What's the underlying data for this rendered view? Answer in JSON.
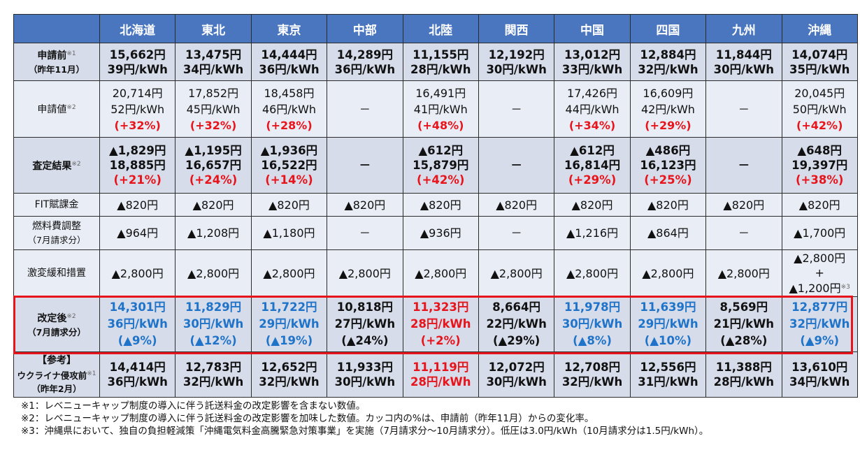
{
  "regions": [
    "北海道",
    "東北",
    "東京",
    "中部",
    "北陸",
    "関西",
    "中国",
    "四国",
    "九州",
    "沖縄"
  ],
  "rows": [
    {
      "id": "before",
      "style": "bold",
      "label": "申請前",
      "sup": "※1",
      "sub": "（昨年11月）",
      "sub_bold": true,
      "cells": [
        {
          "lines": [
            "15,662円",
            "39円/kWh"
          ]
        },
        {
          "lines": [
            "13,475円",
            "34円/kWh"
          ]
        },
        {
          "lines": [
            "14,444円",
            "36円/kWh"
          ]
        },
        {
          "lines": [
            "14,289円",
            "36円/kWh"
          ]
        },
        {
          "lines": [
            "11,155円",
            "28円/kWh"
          ]
        },
        {
          "lines": [
            "12,192円",
            "30円/kWh"
          ]
        },
        {
          "lines": [
            "13,012円",
            "33円/kWh"
          ]
        },
        {
          "lines": [
            "12,884円",
            "32円/kWh"
          ]
        },
        {
          "lines": [
            "11,844円",
            "30円/kWh"
          ]
        },
        {
          "lines": [
            "14,074円",
            "35円/kWh"
          ]
        }
      ]
    },
    {
      "id": "applied",
      "style": "light",
      "label": "申請値",
      "sup": "※2",
      "pct_line": 2,
      "cells": [
        {
          "lines": [
            "20,714円",
            "52円/kWh",
            "(+32%)"
          ]
        },
        {
          "lines": [
            "17,852円",
            "45円/kWh",
            "(+32%)"
          ]
        },
        {
          "lines": [
            "18,458円",
            "46円/kWh",
            "(+28%)"
          ]
        },
        {
          "lines": [
            "－"
          ]
        },
        {
          "lines": [
            "16,491円",
            "41円/kWh",
            "(+48%)"
          ]
        },
        {
          "lines": [
            "－"
          ]
        },
        {
          "lines": [
            "17,426円",
            "44円/kWh",
            "(+34%)"
          ]
        },
        {
          "lines": [
            "16,609円",
            "42円/kWh",
            "(+29%)"
          ]
        },
        {
          "lines": [
            "－"
          ]
        },
        {
          "lines": [
            "20,045円",
            "50円/kWh",
            "(+42%)"
          ]
        }
      ]
    },
    {
      "id": "assessed",
      "style": "mid",
      "label": "査定結果",
      "sup": "※2",
      "pct_line": 2,
      "cells": [
        {
          "lines": [
            "▲1,829円",
            "18,885円",
            "(+21%)"
          ]
        },
        {
          "lines": [
            "▲1,195円",
            "16,657円",
            "(+24%)"
          ]
        },
        {
          "lines": [
            "▲1,936円",
            "16,522円",
            "(+14%)"
          ]
        },
        {
          "lines": [
            "－"
          ]
        },
        {
          "lines": [
            "▲612円",
            "15,879円",
            "(+42%)"
          ]
        },
        {
          "lines": [
            "－"
          ]
        },
        {
          "lines": [
            "▲612円",
            "16,814円",
            "(+29%)"
          ]
        },
        {
          "lines": [
            "▲486円",
            "16,123円",
            "(+25%)"
          ]
        },
        {
          "lines": [
            "－"
          ]
        },
        {
          "lines": [
            "▲648円",
            "19,397円",
            "(+38%)"
          ]
        }
      ]
    },
    {
      "id": "fit",
      "style": "light",
      "label": "FIT賦課金",
      "cells": [
        {
          "lines": [
            "▲820円"
          ]
        },
        {
          "lines": [
            "▲820円"
          ]
        },
        {
          "lines": [
            "▲820円"
          ]
        },
        {
          "lines": [
            "▲820円"
          ]
        },
        {
          "lines": [
            "▲820円"
          ]
        },
        {
          "lines": [
            "▲820円"
          ]
        },
        {
          "lines": [
            "▲820円"
          ]
        },
        {
          "lines": [
            "▲820円"
          ]
        },
        {
          "lines": [
            "▲820円"
          ]
        },
        {
          "lines": [
            "▲820円"
          ]
        }
      ]
    },
    {
      "id": "fuel",
      "style": "light",
      "label": "燃料費調整",
      "sub": "（7月請求分）",
      "cells": [
        {
          "lines": [
            "▲964円"
          ]
        },
        {
          "lines": [
            "▲1,208円"
          ]
        },
        {
          "lines": [
            "▲1,180円"
          ]
        },
        {
          "lines": [
            "－"
          ]
        },
        {
          "lines": [
            "▲936円"
          ]
        },
        {
          "lines": [
            "－"
          ]
        },
        {
          "lines": [
            "▲1,216円"
          ]
        },
        {
          "lines": [
            "▲864円"
          ]
        },
        {
          "lines": [
            "－"
          ]
        },
        {
          "lines": [
            "▲1,700円"
          ]
        }
      ]
    },
    {
      "id": "mitigation",
      "style": "light",
      "label": "激変緩和措置",
      "cells": [
        {
          "lines": [
            "▲2,800円"
          ]
        },
        {
          "lines": [
            "▲2,800円"
          ]
        },
        {
          "lines": [
            "▲2,800円"
          ]
        },
        {
          "lines": [
            "▲2,800円"
          ]
        },
        {
          "lines": [
            "▲2,800円"
          ]
        },
        {
          "lines": [
            "▲2,800円"
          ]
        },
        {
          "lines": [
            "▲2,800円"
          ]
        },
        {
          "lines": [
            "▲2,800円"
          ]
        },
        {
          "lines": [
            "▲2,800円"
          ]
        },
        {
          "lines": [
            "▲2,800円",
            "+",
            "▲1,200円"
          ],
          "sup": "※3"
        }
      ]
    },
    {
      "id": "revised",
      "style": "bold",
      "label": "改定後",
      "sup": "※2",
      "sub": "（7月請求分）",
      "sub_bold": true,
      "cells": [
        {
          "lines": [
            "14,301円",
            "36円/kWh",
            "(▲9%)"
          ],
          "color": "blue"
        },
        {
          "lines": [
            "11,829円",
            "30円/kWh",
            "(▲12%)"
          ],
          "color": "blue"
        },
        {
          "lines": [
            "11,722円",
            "29円/kWh",
            "(▲19%)"
          ],
          "color": "blue"
        },
        {
          "lines": [
            "10,818円",
            "27円/kWh",
            "(▲24%)"
          ],
          "color": "black"
        },
        {
          "lines": [
            "11,323円",
            "28円/kWh",
            "(+2%)"
          ],
          "color": "red"
        },
        {
          "lines": [
            "8,664円",
            "22円/kWh",
            "(▲29%)"
          ],
          "color": "black"
        },
        {
          "lines": [
            "11,978円",
            "30円/kWh",
            "(▲8%)"
          ],
          "color": "blue"
        },
        {
          "lines": [
            "11,639円",
            "29円/kWh",
            "(▲10%)"
          ],
          "color": "blue"
        },
        {
          "lines": [
            "8,569円",
            "21円/kWh",
            "(▲28%)"
          ],
          "color": "black"
        },
        {
          "lines": [
            "12,877円",
            "32円/kWh",
            "(▲9%)"
          ],
          "color": "blue"
        }
      ]
    },
    {
      "id": "reference",
      "style": "bold",
      "label": "【参考】",
      "label2": "ウクライナ侵攻前",
      "sup": "※1",
      "sub": "（昨年2月）",
      "sub_bold": true,
      "cells": [
        {
          "lines": [
            "14,414円",
            "36円/kWh"
          ]
        },
        {
          "lines": [
            "12,783円",
            "32円/kWh"
          ]
        },
        {
          "lines": [
            "12,652円",
            "32円/kWh"
          ]
        },
        {
          "lines": [
            "11,933円",
            "30円/kWh"
          ]
        },
        {
          "lines": [
            "11,119円",
            "28円/kWh"
          ],
          "color": "red"
        },
        {
          "lines": [
            "12,072円",
            "30円/kWh"
          ]
        },
        {
          "lines": [
            "12,708円",
            "32円/kWh"
          ]
        },
        {
          "lines": [
            "12,556円",
            "31円/kWh"
          ]
        },
        {
          "lines": [
            "11,388円",
            "28円/kWh"
          ]
        },
        {
          "lines": [
            "13,610円",
            "34円/kWh"
          ]
        }
      ]
    }
  ],
  "footnotes": [
    "※1：レベニューキャップ制度の導入に伴う託送料金の改定影響を含まない数値。",
    "※2：レベニューキャップ制度の導入に伴う託送料金の改定影響を加味した数値。カッコ内の%は、申請前（昨年11月）からの変化率。",
    "※3：沖縄県において、独自の負担軽減策「沖縄電気料金高騰緊急対策事業」を実施（7月請求分～10月請求分）。低圧は3.0円/kWh（10月請求分は1.5円/kWh）。"
  ],
  "colors": {
    "header": "#4a76c0",
    "blue": "#1f73c8",
    "red": "#e8141b",
    "highlight_border": "#e8141b"
  }
}
